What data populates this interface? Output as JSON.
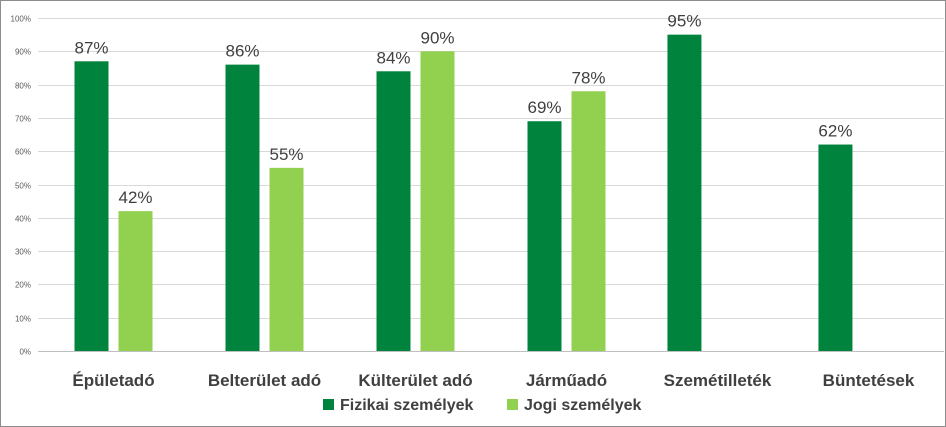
{
  "chart_data": {
    "type": "bar",
    "categories": [
      "Épületadó",
      "Belterület adó",
      "Külterület adó",
      "Járműadó",
      "Szemétilleték",
      "Büntetések"
    ],
    "series": [
      {
        "name": "Fizikai személyek",
        "color": "#00843D",
        "values": [
          87,
          86,
          84,
          69,
          95,
          62
        ],
        "labels": [
          "87%",
          "86%",
          "84%",
          "69%",
          "95%",
          "62%"
        ]
      },
      {
        "name": "Jogi személyek",
        "color": "#92D050",
        "values": [
          42,
          55,
          90,
          78,
          null,
          null
        ],
        "labels": [
          "42%",
          "55%",
          "90%",
          "78%",
          null,
          null
        ]
      }
    ],
    "ylim": [
      0,
      100
    ],
    "yticks": [
      0,
      10,
      20,
      30,
      40,
      50,
      60,
      70,
      80,
      90,
      100
    ],
    "ytick_labels": [
      "0%",
      "10%",
      "20%",
      "30%",
      "40%",
      "50%",
      "60%",
      "70%",
      "80%",
      "90%",
      "100%"
    ],
    "grid": true,
    "legend": "bottom-center"
  }
}
